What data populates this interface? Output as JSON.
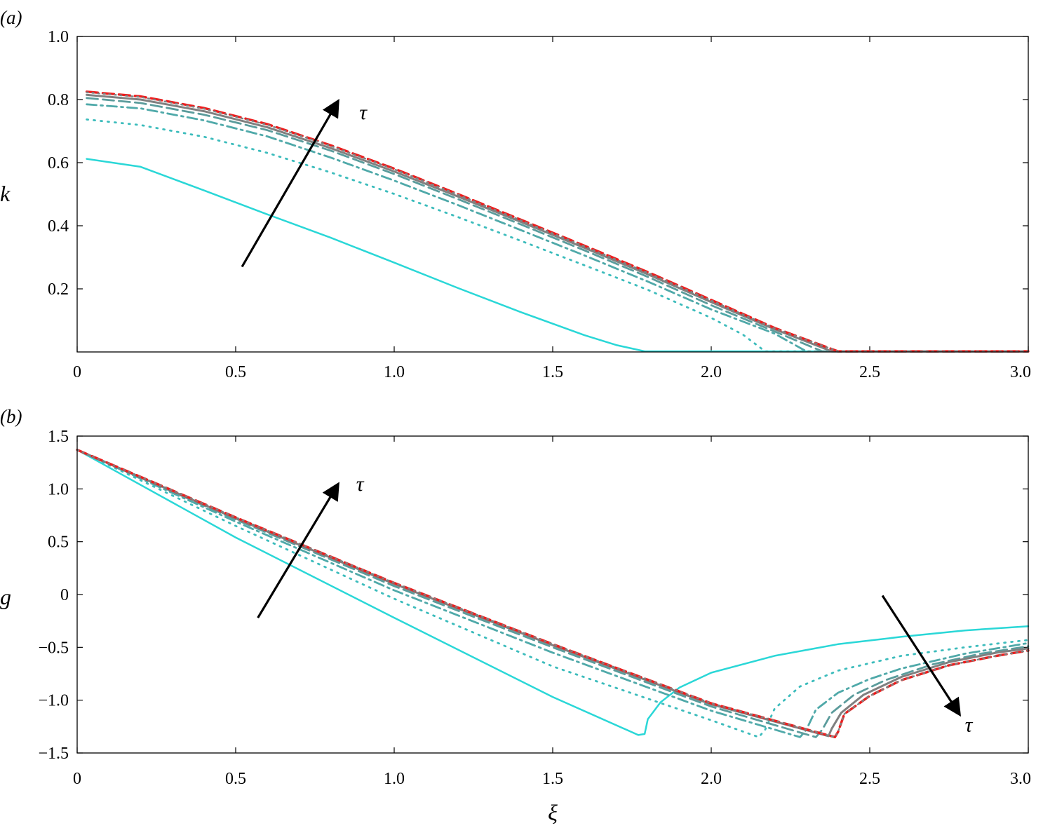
{
  "styles": {
    "colors": {
      "cyan": "#2ad7d7",
      "teal_light": "#3cbcbc",
      "teal": "#4fa9a9",
      "teal_dark": "#5b9c9c",
      "gray": "#808080",
      "red": "#ee1c1c",
      "arrow": "#000000"
    },
    "series_styles": [
      {
        "color_key": "cyan",
        "dash": "none",
        "width": 2.5
      },
      {
        "color_key": "teal_light",
        "dash": "2,8",
        "width": 2.8
      },
      {
        "color_key": "teal",
        "dash": "14,6,3,6",
        "width": 2.8
      },
      {
        "color_key": "teal_dark",
        "dash": "16,7",
        "width": 2.8
      },
      {
        "color_key": "gray",
        "dash": "none",
        "width": 3
      },
      {
        "color_key": "red",
        "dash": "16,7",
        "width": 3.4
      },
      {
        "color_key": "gray",
        "dash": "2,6",
        "width": 2.4
      }
    ]
  },
  "chart_data": [
    {
      "type": "line",
      "panel_label": "(a)",
      "xlabel": "",
      "ylabel": "k",
      "xlim": [
        0,
        3.0
      ],
      "ylim": [
        0,
        1.0
      ],
      "xticks": [
        0,
        0.5,
        1.0,
        1.5,
        2.0,
        2.5,
        3.0
      ],
      "xtick_labels": [
        "0",
        "0.5",
        "1.0",
        "1.5",
        "2.0",
        "2.5",
        "3.0"
      ],
      "yticks": [
        0.2,
        0.4,
        0.6,
        0.8,
        1.0
      ],
      "ytick_labels": [
        "0.2",
        "0.4",
        "0.6",
        "0.8",
        "1.0"
      ],
      "grid": false,
      "legend": "none",
      "annotation": {
        "text": "τ",
        "arrow_from": [
          0.52,
          0.27
        ],
        "arrow_to": [
          0.82,
          0.79
        ],
        "text_at": [
          0.89,
          0.76
        ]
      },
      "series": [
        {
          "x": [
            0.03,
            0.2,
            0.4,
            0.6,
            0.8,
            1.0,
            1.2,
            1.4,
            1.6,
            1.7,
            1.79,
            3.0
          ],
          "values": [
            0.612,
            0.587,
            0.512,
            0.436,
            0.362,
            0.283,
            0.203,
            0.126,
            0.053,
            0.022,
            0.002,
            0.002
          ]
        },
        {
          "x": [
            0.03,
            0.2,
            0.4,
            0.6,
            0.8,
            1.0,
            1.2,
            1.4,
            1.6,
            1.8,
            2.0,
            2.1,
            2.17,
            3.0
          ],
          "values": [
            0.737,
            0.719,
            0.682,
            0.631,
            0.569,
            0.501,
            0.428,
            0.352,
            0.275,
            0.197,
            0.108,
            0.055,
            0.002,
            0.002
          ]
        },
        {
          "x": [
            0.03,
            0.2,
            0.4,
            0.6,
            0.8,
            1.0,
            1.2,
            1.4,
            1.6,
            1.8,
            2.0,
            2.2,
            2.3,
            3.0
          ],
          "values": [
            0.785,
            0.772,
            0.734,
            0.683,
            0.616,
            0.543,
            0.466,
            0.386,
            0.306,
            0.223,
            0.135,
            0.058,
            0.002,
            0.002
          ]
        },
        {
          "x": [
            0.03,
            0.2,
            0.4,
            0.6,
            0.8,
            1.0,
            1.2,
            1.4,
            1.6,
            1.8,
            2.0,
            2.2,
            2.35,
            3.0
          ],
          "values": [
            0.805,
            0.789,
            0.752,
            0.703,
            0.638,
            0.564,
            0.485,
            0.404,
            0.322,
            0.238,
            0.148,
            0.065,
            0.002,
            0.002
          ]
        },
        {
          "x": [
            0.03,
            0.2,
            0.4,
            0.6,
            0.8,
            1.0,
            1.2,
            1.4,
            1.6,
            1.8,
            2.0,
            2.2,
            2.38,
            3.0
          ],
          "values": [
            0.815,
            0.8,
            0.763,
            0.712,
            0.646,
            0.572,
            0.493,
            0.412,
            0.33,
            0.246,
            0.158,
            0.072,
            0.002,
            0.002
          ]
        },
        {
          "x": [
            0.03,
            0.2,
            0.4,
            0.6,
            0.8,
            1.0,
            1.2,
            1.4,
            1.6,
            1.8,
            2.0,
            2.2,
            2.4,
            3.0
          ],
          "values": [
            0.825,
            0.81,
            0.773,
            0.722,
            0.655,
            0.581,
            0.501,
            0.419,
            0.337,
            0.253,
            0.165,
            0.076,
            0.002,
            0.002
          ]
        },
        {
          "x": [
            0.03,
            0.2,
            0.4,
            0.6,
            0.8,
            1.0,
            1.2,
            1.4,
            1.6,
            1.8,
            2.0,
            2.2,
            2.4,
            3.0
          ],
          "values": [
            0.823,
            0.808,
            0.771,
            0.72,
            0.653,
            0.579,
            0.499,
            0.417,
            0.335,
            0.251,
            0.163,
            0.075,
            0.002,
            0.002
          ]
        }
      ]
    },
    {
      "type": "line",
      "panel_label": "(b)",
      "xlabel": "ξ",
      "ylabel": "g",
      "xlim": [
        0,
        3.0
      ],
      "ylim": [
        -1.5,
        1.5
      ],
      "xticks": [
        0,
        0.5,
        1.0,
        1.5,
        2.0,
        2.5,
        3.0
      ],
      "xtick_labels": [
        "0",
        "0.5",
        "1.0",
        "1.5",
        "2.0",
        "2.5",
        "3.0"
      ],
      "yticks": [
        -1.5,
        -1.0,
        -0.5,
        0,
        0.5,
        1.0,
        1.5
      ],
      "ytick_labels": [
        "−1.5",
        "−1.0",
        "−0.5",
        "0",
        "0.5",
        "1.0",
        "1.5"
      ],
      "grid": false,
      "legend": "none",
      "annotations": [
        {
          "text": "τ",
          "arrow_from": [
            0.57,
            -0.22
          ],
          "arrow_to": [
            0.82,
            1.03
          ],
          "text_at": [
            0.88,
            1.05
          ]
        },
        {
          "text": "τ",
          "arrow_from": [
            2.54,
            -0.01
          ],
          "arrow_to": [
            2.78,
            -1.12
          ],
          "text_at": [
            2.8,
            -1.23
          ]
        }
      ],
      "series": [
        {
          "x": [
            0,
            0.5,
            1.0,
            1.5,
            1.77,
            1.79,
            1.8,
            1.84,
            1.9,
            2.0,
            2.2,
            2.4,
            2.6,
            2.8,
            3.0
          ],
          "values": [
            1.37,
            0.54,
            -0.22,
            -0.97,
            -1.33,
            -1.32,
            -1.18,
            -1.02,
            -0.88,
            -0.74,
            -0.58,
            -0.47,
            -0.4,
            -0.34,
            -0.3
          ]
        },
        {
          "x": [
            0,
            0.5,
            1.0,
            1.5,
            2.0,
            2.15,
            2.17,
            2.2,
            2.28,
            2.4,
            2.6,
            2.8,
            3.0
          ],
          "values": [
            1.37,
            0.65,
            -0.04,
            -0.68,
            -1.19,
            -1.35,
            -1.28,
            -1.08,
            -0.87,
            -0.72,
            -0.58,
            -0.5,
            -0.43
          ]
        },
        {
          "x": [
            0,
            0.5,
            1.0,
            1.5,
            2.0,
            2.28,
            2.3,
            2.33,
            2.4,
            2.5,
            2.6,
            2.8,
            3.0
          ],
          "values": [
            1.37,
            0.69,
            0.04,
            -0.55,
            -1.1,
            -1.35,
            -1.28,
            -1.09,
            -0.93,
            -0.8,
            -0.7,
            -0.56,
            -0.46
          ]
        },
        {
          "x": [
            0,
            0.5,
            1.0,
            1.5,
            2.0,
            2.33,
            2.35,
            2.38,
            2.45,
            2.55,
            2.7,
            2.85,
            3.0
          ],
          "values": [
            1.37,
            0.71,
            0.08,
            -0.5,
            -1.06,
            -1.35,
            -1.28,
            -1.12,
            -0.95,
            -0.81,
            -0.66,
            -0.56,
            -0.49
          ]
        },
        {
          "x": [
            0,
            0.5,
            1.0,
            1.5,
            2.0,
            2.37,
            2.38,
            2.41,
            2.48,
            2.6,
            2.75,
            2.9,
            3.0
          ],
          "values": [
            1.37,
            0.72,
            0.1,
            -0.48,
            -1.04,
            -1.34,
            -1.27,
            -1.12,
            -0.95,
            -0.78,
            -0.64,
            -0.55,
            -0.51
          ]
        },
        {
          "x": [
            0,
            0.5,
            1.0,
            1.5,
            2.0,
            2.39,
            2.4,
            2.42,
            2.5,
            2.6,
            2.75,
            2.9,
            3.0
          ],
          "values": [
            1.37,
            0.73,
            0.11,
            -0.47,
            -1.03,
            -1.35,
            -1.3,
            -1.13,
            -0.96,
            -0.81,
            -0.67,
            -0.58,
            -0.53
          ]
        },
        {
          "x": [
            0,
            0.5,
            1.0,
            1.5,
            2.0,
            2.39,
            2.4,
            2.42,
            2.5,
            2.6,
            2.75,
            2.9,
            3.0
          ],
          "values": [
            1.37,
            0.73,
            0.11,
            -0.47,
            -1.03,
            -1.35,
            -1.3,
            -1.13,
            -0.96,
            -0.81,
            -0.67,
            -0.58,
            -0.53
          ]
        }
      ]
    }
  ]
}
